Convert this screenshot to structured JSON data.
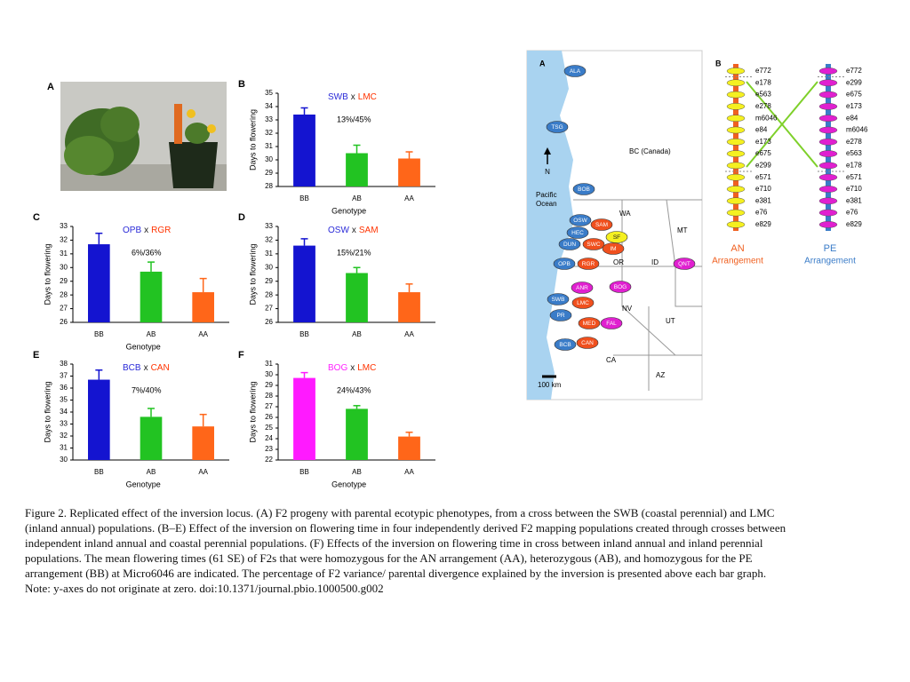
{
  "chart_data": [
    {
      "type": "bar",
      "label": "B",
      "title": [
        "SWB",
        "x",
        "LMC"
      ],
      "title_colors": [
        "#2a2ad8",
        "#222222",
        "#ff3300"
      ],
      "annotation": "13%/45%",
      "categories": [
        "BB",
        "AB",
        "AA"
      ],
      "values": [
        33.4,
        30.5,
        30.1
      ],
      "errors": [
        0.5,
        0.6,
        0.5
      ],
      "colors": [
        "#1414d0",
        "#22c322",
        "#ff6619"
      ],
      "ylim": [
        28,
        35
      ],
      "yticks": [
        28,
        29,
        30,
        31,
        32,
        33,
        34,
        35
      ],
      "ylabel": "Days to flowering",
      "xlabel": "Genotype"
    },
    {
      "type": "bar",
      "label": "C",
      "title": [
        "OPB",
        "x",
        "RGR"
      ],
      "title_colors": [
        "#2a2ad8",
        "#222222",
        "#ff3300"
      ],
      "annotation": "6%/36%",
      "categories": [
        "BB",
        "AB",
        "AA"
      ],
      "values": [
        31.7,
        29.7,
        28.2
      ],
      "errors": [
        0.8,
        0.7,
        1.0
      ],
      "colors": [
        "#1414d0",
        "#22c322",
        "#ff6619"
      ],
      "ylim": [
        26,
        33
      ],
      "yticks": [
        26,
        27,
        28,
        29,
        30,
        31,
        32,
        33
      ],
      "ylabel": "Days to flowering",
      "xlabel": "Genotype"
    },
    {
      "type": "bar",
      "label": "D",
      "title": [
        "OSW",
        "x",
        "SAM"
      ],
      "title_colors": [
        "#2a2ad8",
        "#222222",
        "#ff3300"
      ],
      "annotation": "15%/21%",
      "categories": [
        "BB",
        "AB",
        "AA"
      ],
      "values": [
        31.6,
        29.6,
        28.2
      ],
      "errors": [
        0.5,
        0.4,
        0.6
      ],
      "colors": [
        "#1414d0",
        "#22c322",
        "#ff6619"
      ],
      "ylim": [
        26,
        33
      ],
      "yticks": [
        26,
        27,
        28,
        29,
        30,
        31,
        32,
        33
      ],
      "ylabel": "Days to flowering"
    },
    {
      "type": "bar",
      "label": "E",
      "title": [
        "BCB",
        "x",
        "CAN"
      ],
      "title_colors": [
        "#2a2ad8",
        "#222222",
        "#ff3300"
      ],
      "annotation": "7%/40%",
      "categories": [
        "BB",
        "AB",
        "AA"
      ],
      "values": [
        36.7,
        33.6,
        32.8
      ],
      "errors": [
        0.8,
        0.7,
        1.0
      ],
      "colors": [
        "#1414d0",
        "#22c322",
        "#ff6619"
      ],
      "ylim": [
        30,
        38
      ],
      "yticks": [
        30,
        31,
        32,
        33,
        34,
        35,
        36,
        37,
        38
      ],
      "ylabel": "Days to flowering",
      "xlabel": "Genotype"
    },
    {
      "type": "bar",
      "label": "F",
      "title": [
        "BOG",
        "x",
        "LMC"
      ],
      "title_colors": [
        "#ff22ff",
        "#222222",
        "#ff3300"
      ],
      "annotation": "24%/43%",
      "categories": [
        "BB",
        "AB",
        "AA"
      ],
      "values": [
        29.7,
        26.8,
        24.2
      ],
      "errors": [
        0.5,
        0.3,
        0.4
      ],
      "colors": [
        "#ff1aff",
        "#22c322",
        "#ff6619"
      ],
      "ylim": [
        22,
        31
      ],
      "yticks": [
        22,
        23,
        24,
        25,
        26,
        27,
        28,
        29,
        30,
        31
      ],
      "ylabel": "Days to flowering",
      "xlabel": "Genotype"
    }
  ],
  "photo": {
    "label": "A"
  },
  "map": {
    "label": "A",
    "north": "N",
    "scale": "100 km",
    "regions": [
      "BC (Canada)",
      "Pacific Ocean",
      "WA",
      "MT",
      "OR",
      "ID",
      "NV",
      "UT",
      "CA",
      "AZ"
    ],
    "populations": [
      {
        "name": "ALA",
        "color": "#3a7cc8"
      },
      {
        "name": "TSG",
        "color": "#3a7cc8"
      },
      {
        "name": "BOB",
        "color": "#3a7cc8"
      },
      {
        "name": "OSW",
        "color": "#3a7cc8"
      },
      {
        "name": "SAM",
        "color": "#f0501e"
      },
      {
        "name": "HEC",
        "color": "#3a7cc8"
      },
      {
        "name": "SF",
        "color": "#f5f020"
      },
      {
        "name": "DUN",
        "color": "#3a7cc8"
      },
      {
        "name": "SWC",
        "color": "#f0501e"
      },
      {
        "name": "IM",
        "color": "#f0501e"
      },
      {
        "name": "OPB",
        "color": "#3a7cc8"
      },
      {
        "name": "RGR",
        "color": "#f0501e"
      },
      {
        "name": "QNT",
        "color": "#e020d0"
      },
      {
        "name": "ANR",
        "color": "#e020d0"
      },
      {
        "name": "BOG",
        "color": "#e020d0"
      },
      {
        "name": "SWB",
        "color": "#3a7cc8"
      },
      {
        "name": "LMC",
        "color": "#f0501e"
      },
      {
        "name": "PR",
        "color": "#3a7cc8"
      },
      {
        "name": "MED",
        "color": "#f0501e"
      },
      {
        "name": "FAL",
        "color": "#e020d0"
      },
      {
        "name": "BCB",
        "color": "#3a7cc8"
      },
      {
        "name": "CAN",
        "color": "#f0501e"
      }
    ]
  },
  "arrangement": {
    "label": "B",
    "an": {
      "markers": [
        "e772",
        "e178",
        "e563",
        "e278",
        "m6046",
        "e84",
        "e173",
        "e675",
        "e299",
        "e571",
        "e710",
        "e381",
        "e76",
        "e829"
      ],
      "title": [
        "AN",
        "Arrangement"
      ]
    },
    "pe": {
      "markers": [
        "e772",
        "e299",
        "e675",
        "e173",
        "e84",
        "m6046",
        "e278",
        "e563",
        "e178",
        "e571",
        "e710",
        "e381",
        "e76",
        "e829"
      ],
      "title": [
        "PE",
        "Arrangement"
      ]
    }
  },
  "caption": "Figure 2. Replicated effect of the inversion locus. (A) F2 progeny with parental ecotypic phenotypes, from a cross between the SWB (coastal perennial) and LMC (inland annual) populations. (B–E) Effect of the inversion on flowering time in four independently derived F2 mapping populations created through crosses between independent inland annual and coastal perennial populations. (F) Effects of the inversion on flowering time in cross between inland annual and inland perennial populations. The mean flowering times (61 SE) of F2s that were homozygous for the AN arrangement (AA), heterozygous (AB), and homozygous for the PE arrangement (BB) at Micro6046 are indicated. The percentage of F2 variance/ parental divergence explained by the inversion is presented above each bar graph. Note: y-axes do not originate at zero. doi:10.1371/journal.pbio.1000500.g002"
}
